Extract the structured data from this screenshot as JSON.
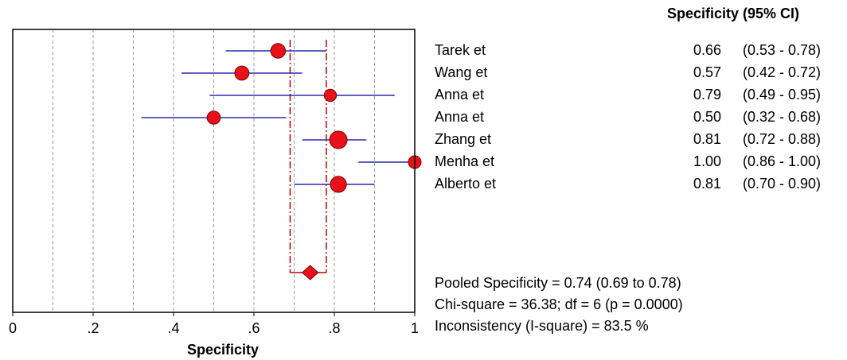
{
  "chart_data": {
    "type": "forest",
    "xlabel": "Specificity",
    "xlim": [
      0,
      1
    ],
    "xticks": [
      {
        "value": 0,
        "label": "0"
      },
      {
        "value": 0.2,
        "label": ".2"
      },
      {
        "value": 0.4,
        "label": ".4"
      },
      {
        "value": 0.6,
        "label": ".6"
      },
      {
        "value": 0.8,
        "label": ".8"
      },
      {
        "value": 1.0,
        "label": "1"
      }
    ],
    "grid_x": [
      0.1,
      0.2,
      0.3,
      0.4,
      0.5,
      0.6,
      0.7,
      0.8,
      0.9
    ],
    "column_header": "Specificity (95% CI)",
    "studies": [
      {
        "name": "Tarek et",
        "estimate": 0.66,
        "lower": 0.53,
        "upper": 0.78,
        "estimate_label": "0.66",
        "ci_label": "(0.53 - 0.78)",
        "weight": 0.7
      },
      {
        "name": "Wang et",
        "estimate": 0.57,
        "lower": 0.42,
        "upper": 0.72,
        "estimate_label": "0.57",
        "ci_label": "(0.42 - 0.72)",
        "weight": 0.65
      },
      {
        "name": "Anna et",
        "estimate": 0.79,
        "lower": 0.49,
        "upper": 0.95,
        "estimate_label": "0.79",
        "ci_label": "(0.49 - 0.95)",
        "weight": 0.45
      },
      {
        "name": "Anna et",
        "estimate": 0.5,
        "lower": 0.32,
        "upper": 0.68,
        "estimate_label": "0.50",
        "ci_label": "(0.32 - 0.68)",
        "weight": 0.55
      },
      {
        "name": "Zhang et",
        "estimate": 0.81,
        "lower": 0.72,
        "upper": 0.88,
        "estimate_label": "0.81",
        "ci_label": "(0.72 - 0.88)",
        "weight": 1.0
      },
      {
        "name": "Menha et",
        "estimate": 1.0,
        "lower": 0.86,
        "upper": 1.0,
        "estimate_label": "1.00",
        "ci_label": "(0.86 - 1.00)",
        "weight": 0.5
      },
      {
        "name": "Alberto et",
        "estimate": 0.81,
        "lower": 0.7,
        "upper": 0.9,
        "estimate_label": "0.81",
        "ci_label": "(0.70 - 0.90)",
        "weight": 0.85
      }
    ],
    "pooled": {
      "estimate": 0.74,
      "lower": 0.69,
      "upper": 0.78
    },
    "summary_lines": [
      "Pooled Specificity = 0.74 (0.69 to 0.78)",
      "Chi-square = 36.38; df =  6 (p = 0.0000)",
      "Inconsistency (I-square) = 83.5 %"
    ],
    "colors": {
      "marker": "#e8111a",
      "marker_edge": "#7a0000",
      "ci_line": "#2b2bb0",
      "pooled_line": "#c00000",
      "grid": "#9a9a9a"
    }
  }
}
